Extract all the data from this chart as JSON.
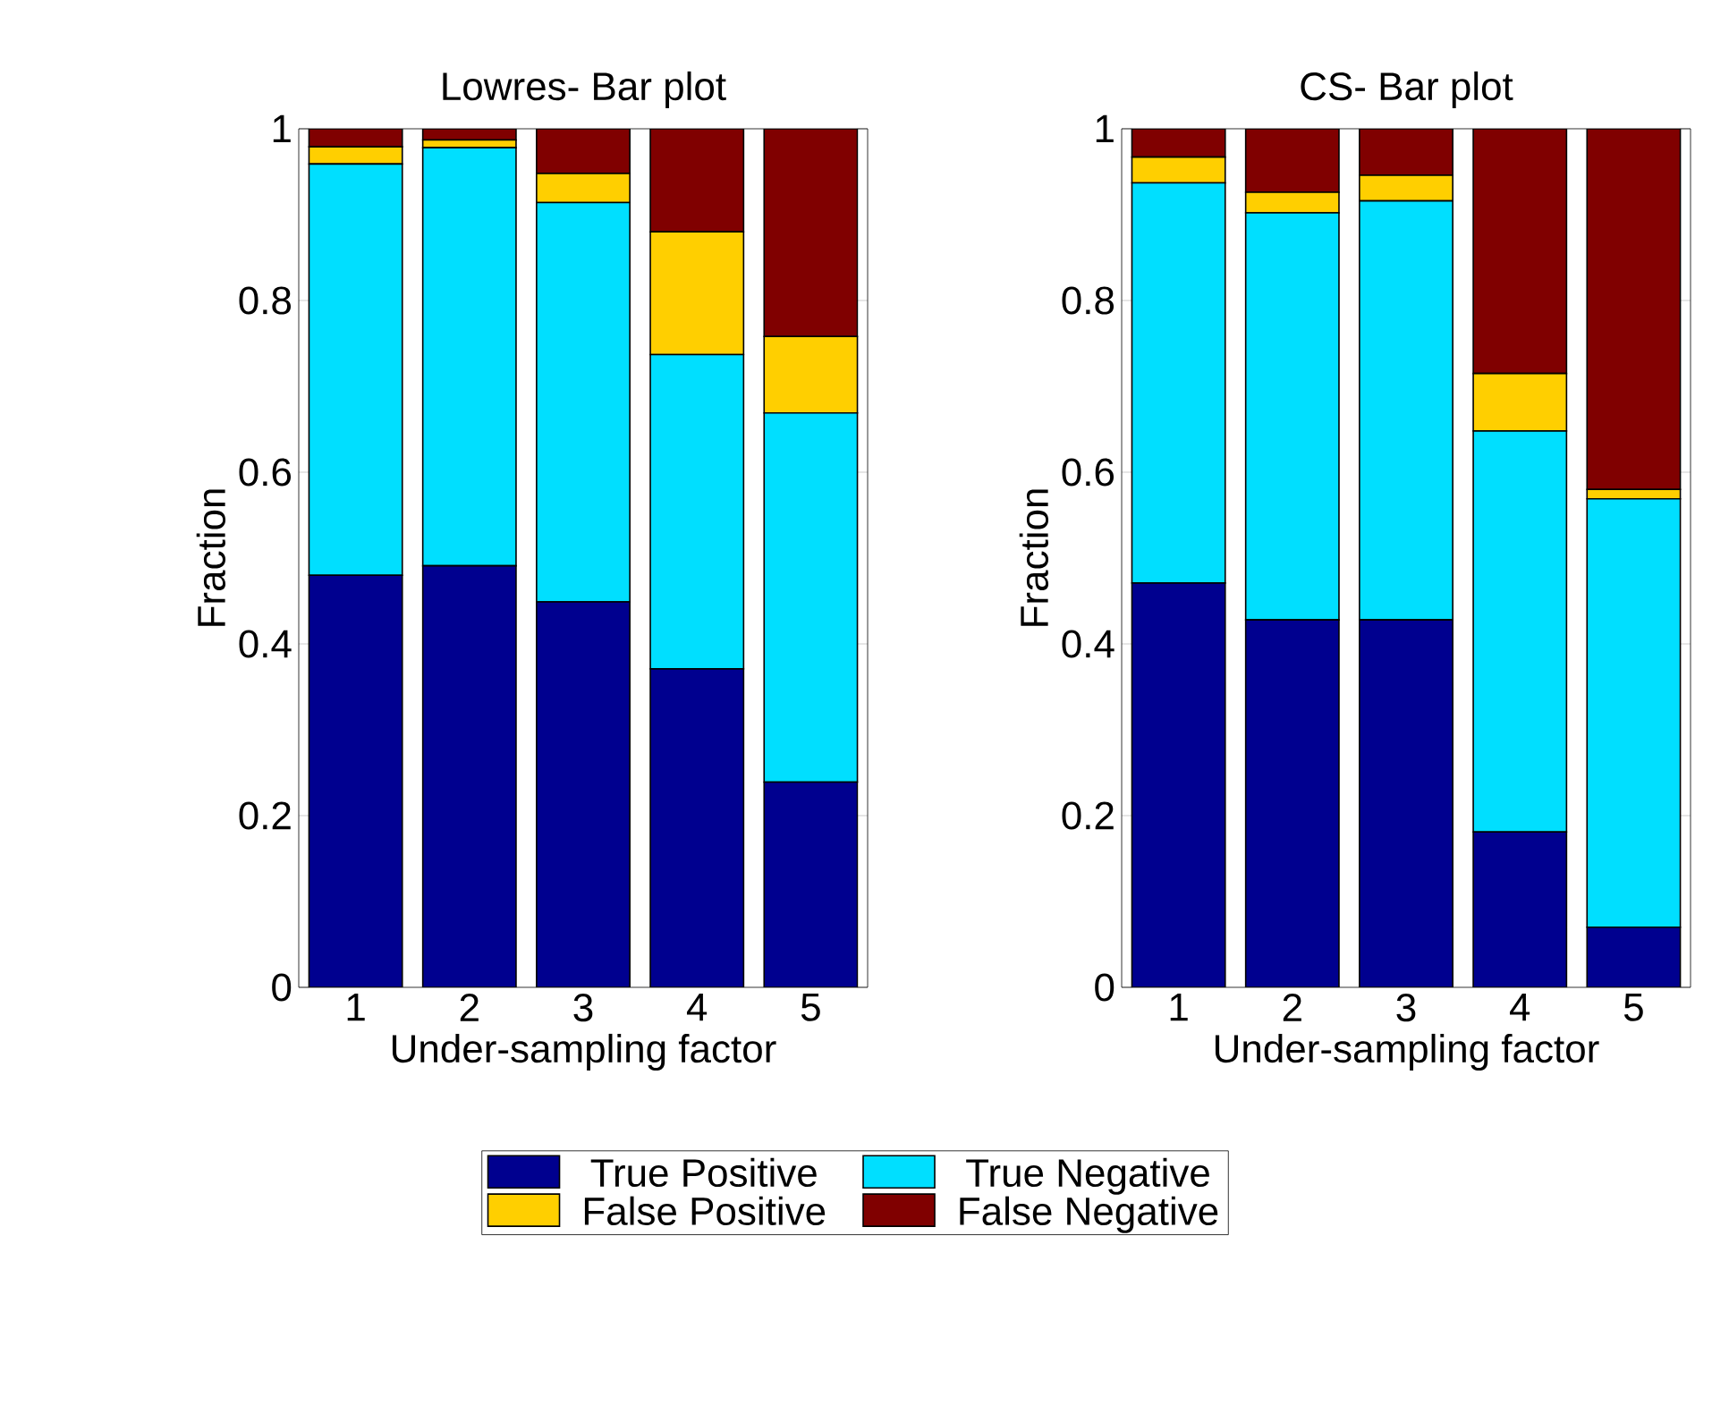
{
  "chart_data": [
    {
      "type": "bar",
      "stacked": true,
      "title": "Lowres- Bar plot",
      "xlabel": "Under-sampling factor",
      "ylabel": "Fraction",
      "categories": [
        "1",
        "2",
        "3",
        "4",
        "5"
      ],
      "ylim": [
        0,
        1
      ],
      "yticks": [
        0,
        0.2,
        0.4,
        0.6,
        0.8,
        1
      ],
      "legend": "bottom",
      "series": [
        {
          "name": "True Positive",
          "color": "#00008f",
          "values": [
            0.48,
            0.491,
            0.449,
            0.371,
            0.239
          ]
        },
        {
          "name": "True Negative",
          "color": "#00dfff",
          "values": [
            0.479,
            0.487,
            0.465,
            0.366,
            0.43
          ]
        },
        {
          "name": "False Positive",
          "color": "#ffcf00",
          "values": [
            0.02,
            0.009,
            0.034,
            0.143,
            0.089
          ]
        },
        {
          "name": "False Negative",
          "color": "#800000",
          "values": [
            0.021,
            0.013,
            0.052,
            0.12,
            0.242
          ]
        }
      ]
    },
    {
      "type": "bar",
      "stacked": true,
      "title": "CS- Bar plot",
      "xlabel": "Under-sampling factor",
      "ylabel": "Fraction",
      "categories": [
        "1",
        "2",
        "3",
        "4",
        "5"
      ],
      "ylim": [
        0,
        1
      ],
      "yticks": [
        0,
        0.2,
        0.4,
        0.6,
        0.8,
        1
      ],
      "series": [
        {
          "color": "#00008f",
          "values": [
            0.471,
            0.428,
            0.428,
            0.181,
            0.07
          ]
        },
        {
          "color": "#00dfff",
          "values": [
            0.466,
            0.474,
            0.488,
            0.467,
            0.499
          ]
        },
        {
          "color": "#ffcf00",
          "values": [
            0.03,
            0.024,
            0.03,
            0.067,
            0.011
          ]
        },
        {
          "color": "#800000",
          "values": [
            0.033,
            0.074,
            0.054,
            0.285,
            0.42
          ]
        }
      ]
    }
  ]
}
